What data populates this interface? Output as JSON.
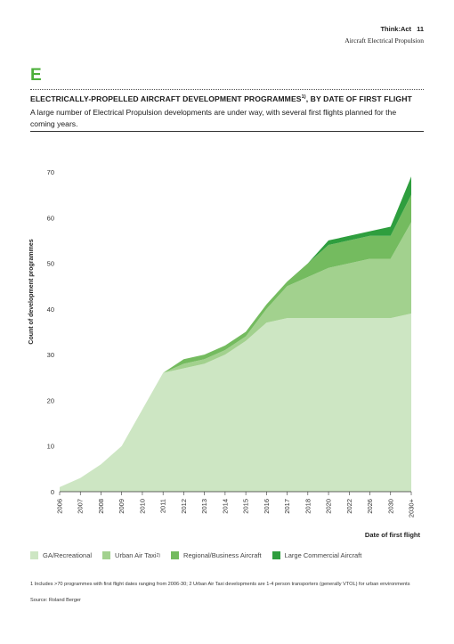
{
  "header": {
    "brand": "Think:Act",
    "page_number": "11",
    "subtitle": "Aircraft Electrical Propulsion"
  },
  "section_letter": "E",
  "title": "ELECTRICALLY-PROPELLED AIRCRAFT DEVELOPMENT PROGRAMMES",
  "title_sup": "1)",
  "title_suffix": ", BY DATE OF FIRST FLIGHT",
  "subtitle": "A large number of Electrical Propulsion developments are under way, with several first flights planned for the coming years.",
  "legend": {
    "ga": "GA/Recreational",
    "uat": "Urban Air Taxi",
    "uat_sup": "2)",
    "regional": "Regional/Business Aircraft",
    "large": "Large Commercial Aircraft"
  },
  "footnote": "1 Includes >70 programmes with first flight dates ranging from 2006-30; 2 Urban Air Taxi developments are 1-4 person transporters (generally VTOL) for urban environments",
  "source": "Source: Roland Berger",
  "colors": {
    "ga": "#cde6c3",
    "uat": "#a2d18e",
    "regional": "#74bb5f",
    "large": "#2e9e3e"
  },
  "chart_data": {
    "type": "area",
    "stacked": true,
    "x": [
      "2006",
      "2007",
      "2008",
      "2009",
      "2010",
      "2011",
      "2012",
      "2013",
      "2014",
      "2015",
      "2016",
      "2017",
      "2018",
      "2020",
      "2022",
      "2026",
      "2030",
      "2030+"
    ],
    "ylabel": "Count of development programmes",
    "xlabel": "Date of first flight",
    "ylim": [
      0,
      70
    ],
    "yticks": [
      0,
      10,
      20,
      30,
      40,
      50,
      60,
      70
    ],
    "grid": false,
    "legend_position": "bottom",
    "series": [
      {
        "name": "GA/Recreational",
        "values": [
          1,
          3,
          6,
          10,
          18,
          26,
          27,
          28,
          30,
          33,
          37,
          38,
          38,
          38,
          38,
          38,
          38,
          39
        ]
      },
      {
        "name": "Urban Air Taxi",
        "values": [
          0,
          0,
          0,
          0,
          0,
          0,
          1,
          1,
          1,
          1,
          3,
          7,
          9,
          11,
          12,
          13,
          13,
          20
        ]
      },
      {
        "name": "Regional/Business Aircraft",
        "values": [
          0,
          0,
          0,
          0,
          0,
          0,
          1,
          1,
          1,
          1,
          1,
          1,
          3,
          5,
          5,
          5,
          5,
          6
        ]
      },
      {
        "name": "Large Commercial Aircraft",
        "values": [
          0,
          0,
          0,
          0,
          0,
          0,
          0,
          0,
          0,
          0,
          0,
          0,
          0,
          1,
          1,
          1,
          2,
          4
        ]
      }
    ]
  }
}
